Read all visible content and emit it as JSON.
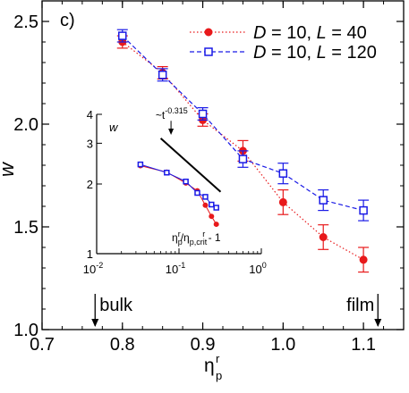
{
  "chart_data": [
    {
      "type": "scatter",
      "panel_label": "c)",
      "xlabel": "η",
      "xlabel_sub": "p",
      "xlabel_sup": "r",
      "ylabel": "w",
      "xlim": [
        0.7,
        1.15
      ],
      "ylim": [
        1.0,
        2.6
      ],
      "x_ticks": [
        "0.7",
        "0.8",
        "0.9",
        "1.0",
        "1.1"
      ],
      "x_tick_values": [
        0.7,
        0.8,
        0.9,
        1.0,
        1.1
      ],
      "y_ticks": [
        "1.0",
        "1.5",
        "2.0",
        "2.5"
      ],
      "y_tick_values": [
        1.0,
        1.5,
        2.0,
        2.5
      ],
      "legend_position": "top-right",
      "series": [
        {
          "name_parts": [
            "D",
            " = 10, ",
            "L",
            " = 40"
          ],
          "color": "#e8191b",
          "marker": "filled-circle",
          "line": "dotted",
          "x": [
            0.8,
            0.85,
            0.9,
            0.95,
            1.0,
            1.05,
            1.1
          ],
          "y": [
            2.4,
            2.25,
            2.02,
            1.87,
            1.62,
            1.45,
            1.34
          ],
          "err": [
            0.03,
            0.03,
            0.03,
            0.05,
            0.06,
            0.06,
            0.06
          ]
        },
        {
          "name_parts": [
            "D",
            " = 10, ",
            "L",
            " = 120"
          ],
          "color": "#1a1ae6",
          "marker": "open-square",
          "line": "dashed",
          "x": [
            0.8,
            0.85,
            0.9,
            0.95,
            1.0,
            1.05,
            1.1
          ],
          "y": [
            2.43,
            2.24,
            2.05,
            1.83,
            1.76,
            1.63,
            1.58
          ],
          "err": [
            0.03,
            0.03,
            0.03,
            0.04,
            0.05,
            0.05,
            0.05
          ]
        }
      ],
      "annotations": [
        {
          "text": "bulk",
          "x": 0.766
        },
        {
          "text": "film",
          "x": 1.118
        }
      ]
    },
    {
      "type": "line",
      "scale": "log-log",
      "ylabel": "w",
      "xlabel_text": "η",
      "xlabel_sub": "p",
      "xlabel_sup": "r",
      "xlabel_mid": "/η",
      "xlabel_sub2": "p,crit",
      "xlabel_sup2": "r",
      "xlabel_tail": " - 1",
      "xlim": [
        0.01,
        1
      ],
      "ylim": [
        1,
        4
      ],
      "x_ticks": [
        {
          "base": "10",
          "exp": "-2",
          "value": 0.01
        },
        {
          "base": "10",
          "exp": "-1",
          "value": 0.1
        },
        {
          "base": "10",
          "exp": "0",
          "value": 1
        }
      ],
      "y_ticks": [
        "1",
        "2",
        "3",
        "4"
      ],
      "y_tick_values": [
        1,
        2,
        3,
        4
      ],
      "fit_label_base": "~t",
      "fit_label_exp": "-0.315",
      "fit_line": {
        "x": [
          0.06,
          0.32
        ],
        "y": [
          3.15,
          1.85
        ]
      },
      "series": [
        {
          "color": "#e8191b",
          "marker": "filled-circle",
          "x": [
            0.034,
            0.071,
            0.121,
            0.167,
            0.209,
            0.248,
            0.284
          ],
          "y": [
            2.4,
            2.25,
            2.02,
            1.87,
            1.62,
            1.45,
            1.34
          ]
        },
        {
          "color": "#1a1ae6",
          "marker": "open-square",
          "x": [
            0.034,
            0.071,
            0.121,
            0.167,
            0.209,
            0.248,
            0.284
          ],
          "y": [
            2.43,
            2.24,
            2.05,
            1.83,
            1.76,
            1.63,
            1.58
          ]
        }
      ]
    }
  ]
}
